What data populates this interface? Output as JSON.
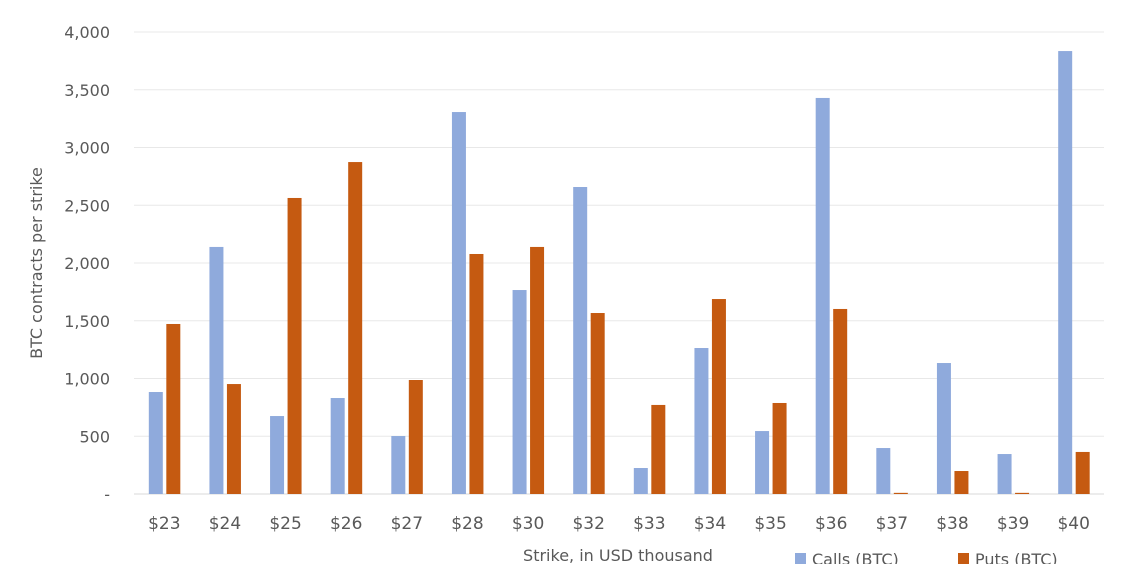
{
  "chart_data": {
    "type": "bar",
    "title": "",
    "xlabel": "Strike, in USD thousand",
    "ylabel": "BTC contracts per strike",
    "ylim": [
      0,
      4000
    ],
    "yticks": [
      0,
      500,
      1000,
      1500,
      2000,
      2500,
      3000,
      3500,
      4000
    ],
    "ytick_labels": [
      "-",
      "500",
      "1,000",
      "1,500",
      "2,000",
      "2,500",
      "3,000",
      "3,500",
      "4,000"
    ],
    "grid": true,
    "legend_position": "bottom-right",
    "categories": [
      "$23",
      "$24",
      "$25",
      "$26",
      "$27",
      "$28",
      "$30",
      "$32",
      "$33",
      "$34",
      "$35",
      "$36",
      "$37",
      "$38",
      "$39",
      "$40"
    ],
    "series": [
      {
        "name": "Calls (BTC)",
        "color": "#8faadc",
        "values": [
          883,
          2139,
          675,
          831,
          502,
          3307,
          1766,
          2658,
          225,
          1264,
          545,
          3429,
          398,
          1134,
          346,
          3835
        ]
      },
      {
        "name": "Puts (BTC)",
        "color": "#c55a11",
        "values": [
          1472,
          952,
          2563,
          2874,
          987,
          2078,
          2139,
          1567,
          771,
          1688,
          788,
          1602,
          10,
          199,
          10,
          364
        ]
      }
    ]
  }
}
